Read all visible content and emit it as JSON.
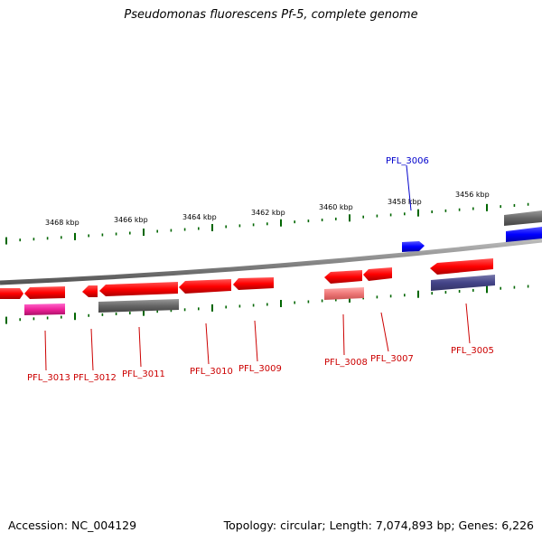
{
  "title": "Pseudomonas fluorescens Pf-5, complete genome",
  "footer": {
    "accession": "Accession: NC_004129",
    "summary": "Topology: circular; Length: 7,074,893 bp; Genes: 6,226"
  },
  "scale_labels": [
    "3468 kbp",
    "3466 kbp",
    "3464 kbp",
    "3462 kbp",
    "3460 kbp",
    "3458 kbp",
    "3456 kbp"
  ],
  "gene_labels": [
    {
      "id": "PFL_3013",
      "color": "#cc0000"
    },
    {
      "id": "PFL_3012",
      "color": "#cc0000"
    },
    {
      "id": "PFL_3011",
      "color": "#cc0000"
    },
    {
      "id": "PFL_3010",
      "color": "#cc0000"
    },
    {
      "id": "PFL_3009",
      "color": "#cc0000"
    },
    {
      "id": "PFL_3008",
      "color": "#cc0000"
    },
    {
      "id": "PFL_3007",
      "color": "#cc0000"
    },
    {
      "id": "PFL_3006",
      "color": "#0000cc"
    },
    {
      "id": "PFL_3005",
      "color": "#cc0000"
    }
  ],
  "colors": {
    "gene_forward": "#ff0000",
    "gene_reverse": "#ff0000",
    "gene_highlight_blue": "#0000ff",
    "backbone": "#888888",
    "ticks": "#006600",
    "orf_gray": "#666666",
    "orf_pink": "#ee2299",
    "orf_lightred": "#ee7777",
    "orf_navy": "#444488"
  }
}
